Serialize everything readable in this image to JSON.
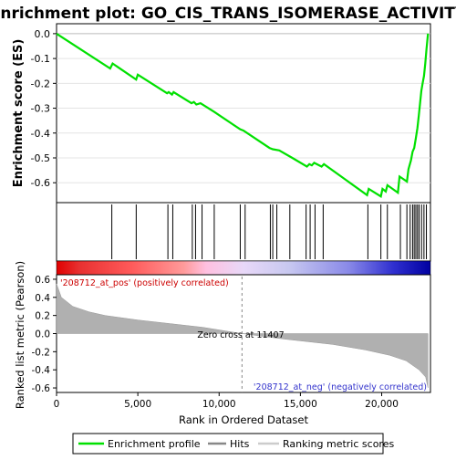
{
  "chart_data": {
    "type": "line",
    "title": "Enrichment plot: GO_CIS_TRANS_ISOMERASE_ACTIVITY",
    "xlabel": "Rank in Ordered Dataset",
    "es_panel": {
      "ylabel": "Enrichment score (ES)",
      "ylim": [
        -0.68,
        0.04
      ],
      "yticks": [
        0.0,
        -0.1,
        -0.2,
        -0.3,
        -0.4,
        -0.5,
        -0.6
      ],
      "ytick_labels": [
        "0.0",
        "-0.1",
        "-0.2",
        "-0.3",
        "-0.4",
        "-0.5",
        "-0.6"
      ],
      "series_color": "#00e000",
      "points": [
        [
          0,
          0.0
        ],
        [
          3300,
          -0.14
        ],
        [
          3450,
          -0.12
        ],
        [
          4900,
          -0.185
        ],
        [
          5000,
          -0.165
        ],
        [
          6800,
          -0.24
        ],
        [
          6900,
          -0.235
        ],
        [
          7100,
          -0.245
        ],
        [
          7200,
          -0.235
        ],
        [
          8300,
          -0.28
        ],
        [
          8450,
          -0.275
        ],
        [
          8600,
          -0.285
        ],
        [
          8850,
          -0.28
        ],
        [
          9700,
          -0.315
        ],
        [
          11300,
          -0.385
        ],
        [
          11500,
          -0.39
        ],
        [
          13100,
          -0.46
        ],
        [
          13300,
          -0.465
        ],
        [
          13700,
          -0.47
        ],
        [
          14500,
          -0.5
        ],
        [
          15400,
          -0.535
        ],
        [
          15550,
          -0.525
        ],
        [
          15700,
          -0.53
        ],
        [
          15850,
          -0.52
        ],
        [
          16300,
          -0.535
        ],
        [
          16450,
          -0.525
        ],
        [
          19100,
          -0.65
        ],
        [
          19200,
          -0.625
        ],
        [
          19950,
          -0.655
        ],
        [
          20050,
          -0.625
        ],
        [
          20250,
          -0.635
        ],
        [
          20350,
          -0.61
        ],
        [
          21000,
          -0.64
        ],
        [
          21100,
          -0.575
        ],
        [
          21550,
          -0.595
        ],
        [
          21650,
          -0.545
        ],
        [
          21800,
          -0.51
        ],
        [
          21900,
          -0.475
        ],
        [
          22000,
          -0.46
        ],
        [
          22100,
          -0.42
        ],
        [
          22200,
          -0.38
        ],
        [
          22280,
          -0.33
        ],
        [
          22360,
          -0.28
        ],
        [
          22440,
          -0.23
        ],
        [
          22520,
          -0.2
        ],
        [
          22600,
          -0.17
        ],
        [
          22680,
          -0.12
        ],
        [
          22760,
          -0.06
        ],
        [
          22850,
          0.0
        ]
      ]
    },
    "hits": [
      3400,
      4900,
      6850,
      7150,
      8350,
      8550,
      8950,
      9700,
      11300,
      11600,
      13150,
      13300,
      13550,
      14350,
      15350,
      15600,
      15900,
      16400,
      19150,
      19950,
      20350,
      21150,
      21550,
      21750,
      21900,
      22000,
      22100,
      22200,
      22300,
      22450,
      22600,
      22750
    ],
    "ranking_panel": {
      "ylabel": "Ranked list metric (Pearson)",
      "ylim": [
        -0.65,
        0.65
      ],
      "yticks": [
        0.6,
        0.4,
        0.2,
        0.0,
        -0.2,
        -0.4,
        -0.6
      ],
      "ytick_labels": [
        "0.6",
        "0.4",
        "0.2",
        "0.0",
        "-0.2",
        "-0.4",
        "-0.6"
      ],
      "profile": [
        [
          0,
          0.55
        ],
        [
          300,
          0.4
        ],
        [
          1000,
          0.3
        ],
        [
          2000,
          0.24
        ],
        [
          3000,
          0.2
        ],
        [
          5000,
          0.15
        ],
        [
          7000,
          0.11
        ],
        [
          9000,
          0.07
        ],
        [
          11407,
          0.0
        ],
        [
          14000,
          -0.06
        ],
        [
          17000,
          -0.12
        ],
        [
          19000,
          -0.18
        ],
        [
          20500,
          -0.24
        ],
        [
          21500,
          -0.3
        ],
        [
          22300,
          -0.4
        ],
        [
          22700,
          -0.48
        ],
        [
          22850,
          -0.6
        ]
      ],
      "pos_label": "'208712_at_pos' (positively correlated)",
      "neg_label": "'208712_at_neg' (negatively correlated)",
      "zero_cross_label": "Zero cross at 11407",
      "zero_cross": 11407
    },
    "xlim": [
      0,
      23000
    ],
    "xticks": [
      0,
      5000,
      10000,
      15000,
      20000
    ],
    "xtick_labels": [
      "0",
      "5,000",
      "10,000",
      "15,000",
      "20,000"
    ],
    "legend": {
      "placement": "bottom",
      "entries": [
        {
          "label": "Enrichment profile",
          "color": "#00e000"
        },
        {
          "label": "Hits",
          "color": "#888888"
        },
        {
          "label": "Ranking metric scores",
          "color": "#cccccc"
        }
      ]
    }
  }
}
